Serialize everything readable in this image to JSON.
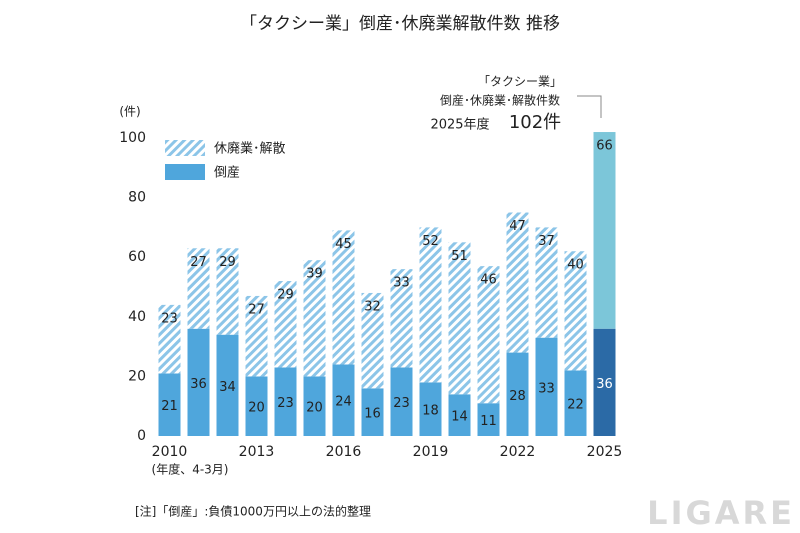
{
  "chart_data": {
    "type": "stacked-bar",
    "title": "「タクシー業」倒産･休廃業解散件数 推移",
    "y_unit": "(件)",
    "x_note": "(年度、4-3月)",
    "footnote": "[注]「倒産」:負債1000万円以上の法的整理",
    "watermark": "LIGARE",
    "annotation": [
      "「タクシー業」",
      "倒産･休廃業･解散件数",
      "2025年度",
      "102件"
    ],
    "categories": [
      "2010",
      null,
      null,
      "2013",
      null,
      null,
      "2016",
      null,
      null,
      "2019",
      null,
      null,
      "2022",
      null,
      null,
      "2025"
    ],
    "series": [
      {
        "name": "倒産",
        "color": "#4fa6dc",
        "last_color": "#2b6aa6",
        "hatched": false,
        "values": [
          21,
          36,
          34,
          20,
          23,
          20,
          24,
          16,
          23,
          18,
          14,
          11,
          28,
          33,
          22,
          36
        ]
      },
      {
        "name": "休廃業･解散",
        "color": "#8cc5e8",
        "last_color": "#7cc6d9",
        "hatched": true,
        "values": [
          23,
          27,
          29,
          27,
          29,
          39,
          45,
          32,
          33,
          52,
          51,
          46,
          47,
          37,
          40,
          66
        ]
      }
    ],
    "ylim": [
      0,
      100
    ],
    "yticks": [
      0,
      20,
      40,
      60,
      80,
      100
    ],
    "grid": false
  }
}
